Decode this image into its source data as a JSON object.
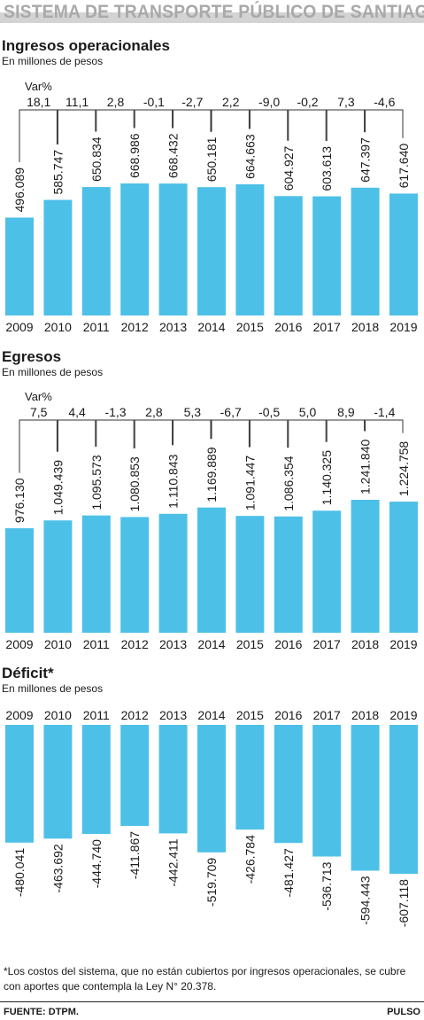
{
  "header": {
    "title": "SISTEMA DE TRANSPORTE PÚBLICO DE SANTIAGO"
  },
  "colors": {
    "bar": "#4dc0e8",
    "line": "#333333",
    "text": "#1a1a1a"
  },
  "years": [
    "2009",
    "2010",
    "2011",
    "2012",
    "2013",
    "2014",
    "2015",
    "2016",
    "2017",
    "2018",
    "2019"
  ],
  "chart_data": [
    {
      "type": "bar",
      "title": "Ingresos operacionales",
      "subtitle": "En millones de pesos",
      "var_label": "Var%",
      "categories": [
        "2009",
        "2010",
        "2011",
        "2012",
        "2013",
        "2014",
        "2015",
        "2016",
        "2017",
        "2018",
        "2019"
      ],
      "values": [
        496089,
        585747,
        650834,
        668986,
        668432,
        650181,
        664663,
        604927,
        603613,
        647397,
        617640
      ],
      "value_labels": [
        "496.089",
        "585.747",
        "650.834",
        "668.986",
        "668.432",
        "650.181",
        "664.663",
        "604.927",
        "603.613",
        "647.397",
        "617.640"
      ],
      "var_changes": [
        "18,1",
        "11,1",
        "2,8",
        "-0,1",
        "-2,7",
        "2,2",
        "-9,0",
        "-0,2",
        "7,3",
        "-4,6"
      ]
    },
    {
      "type": "bar",
      "title": "Egresos",
      "subtitle": "En millones de pesos",
      "var_label": "Var%",
      "categories": [
        "2009",
        "2010",
        "2011",
        "2012",
        "2013",
        "2014",
        "2015",
        "2016",
        "2017",
        "2018",
        "2019"
      ],
      "values": [
        976130,
        1049439,
        1095573,
        1080853,
        1110843,
        1169889,
        1091447,
        1086354,
        1140325,
        1241840,
        1224758
      ],
      "value_labels": [
        "976.130",
        "1.049.439",
        "1.095.573",
        "1.080.853",
        "1.110.843",
        "1.169.889",
        "1.091.447",
        "1.086.354",
        "1.140.325",
        "1.241.840",
        "1.224.758"
      ],
      "var_changes": [
        "7,5",
        "4,4",
        "-1,3",
        "2,8",
        "5,3",
        "-6,7",
        "-0,5",
        "5,0",
        "8,9",
        "-1,4"
      ]
    },
    {
      "type": "bar",
      "title": "Déficit*",
      "subtitle": "En millones de pesos",
      "categories": [
        "2009",
        "2010",
        "2011",
        "2012",
        "2013",
        "2014",
        "2015",
        "2016",
        "2017",
        "2018",
        "2019"
      ],
      "values": [
        -480041,
        -463692,
        -444740,
        -411867,
        -442411,
        -519709,
        -426784,
        -481427,
        -536713,
        -594443,
        -607118
      ],
      "value_labels": [
        "-480.041",
        "-463.692",
        "-444.740",
        "-411.867",
        "-442.411",
        "-519.709",
        "-426.784",
        "-481.427",
        "-536.713",
        "-594.443",
        "-607.118"
      ]
    }
  ],
  "footnote": "*Los costos del sistema, que no están cubiertos por ingresos operacionales, se cubre con aportes que contempla la Ley N° 20.378.",
  "footer": {
    "source": "FUENTE: DTPM.",
    "brand": "PULSO"
  }
}
